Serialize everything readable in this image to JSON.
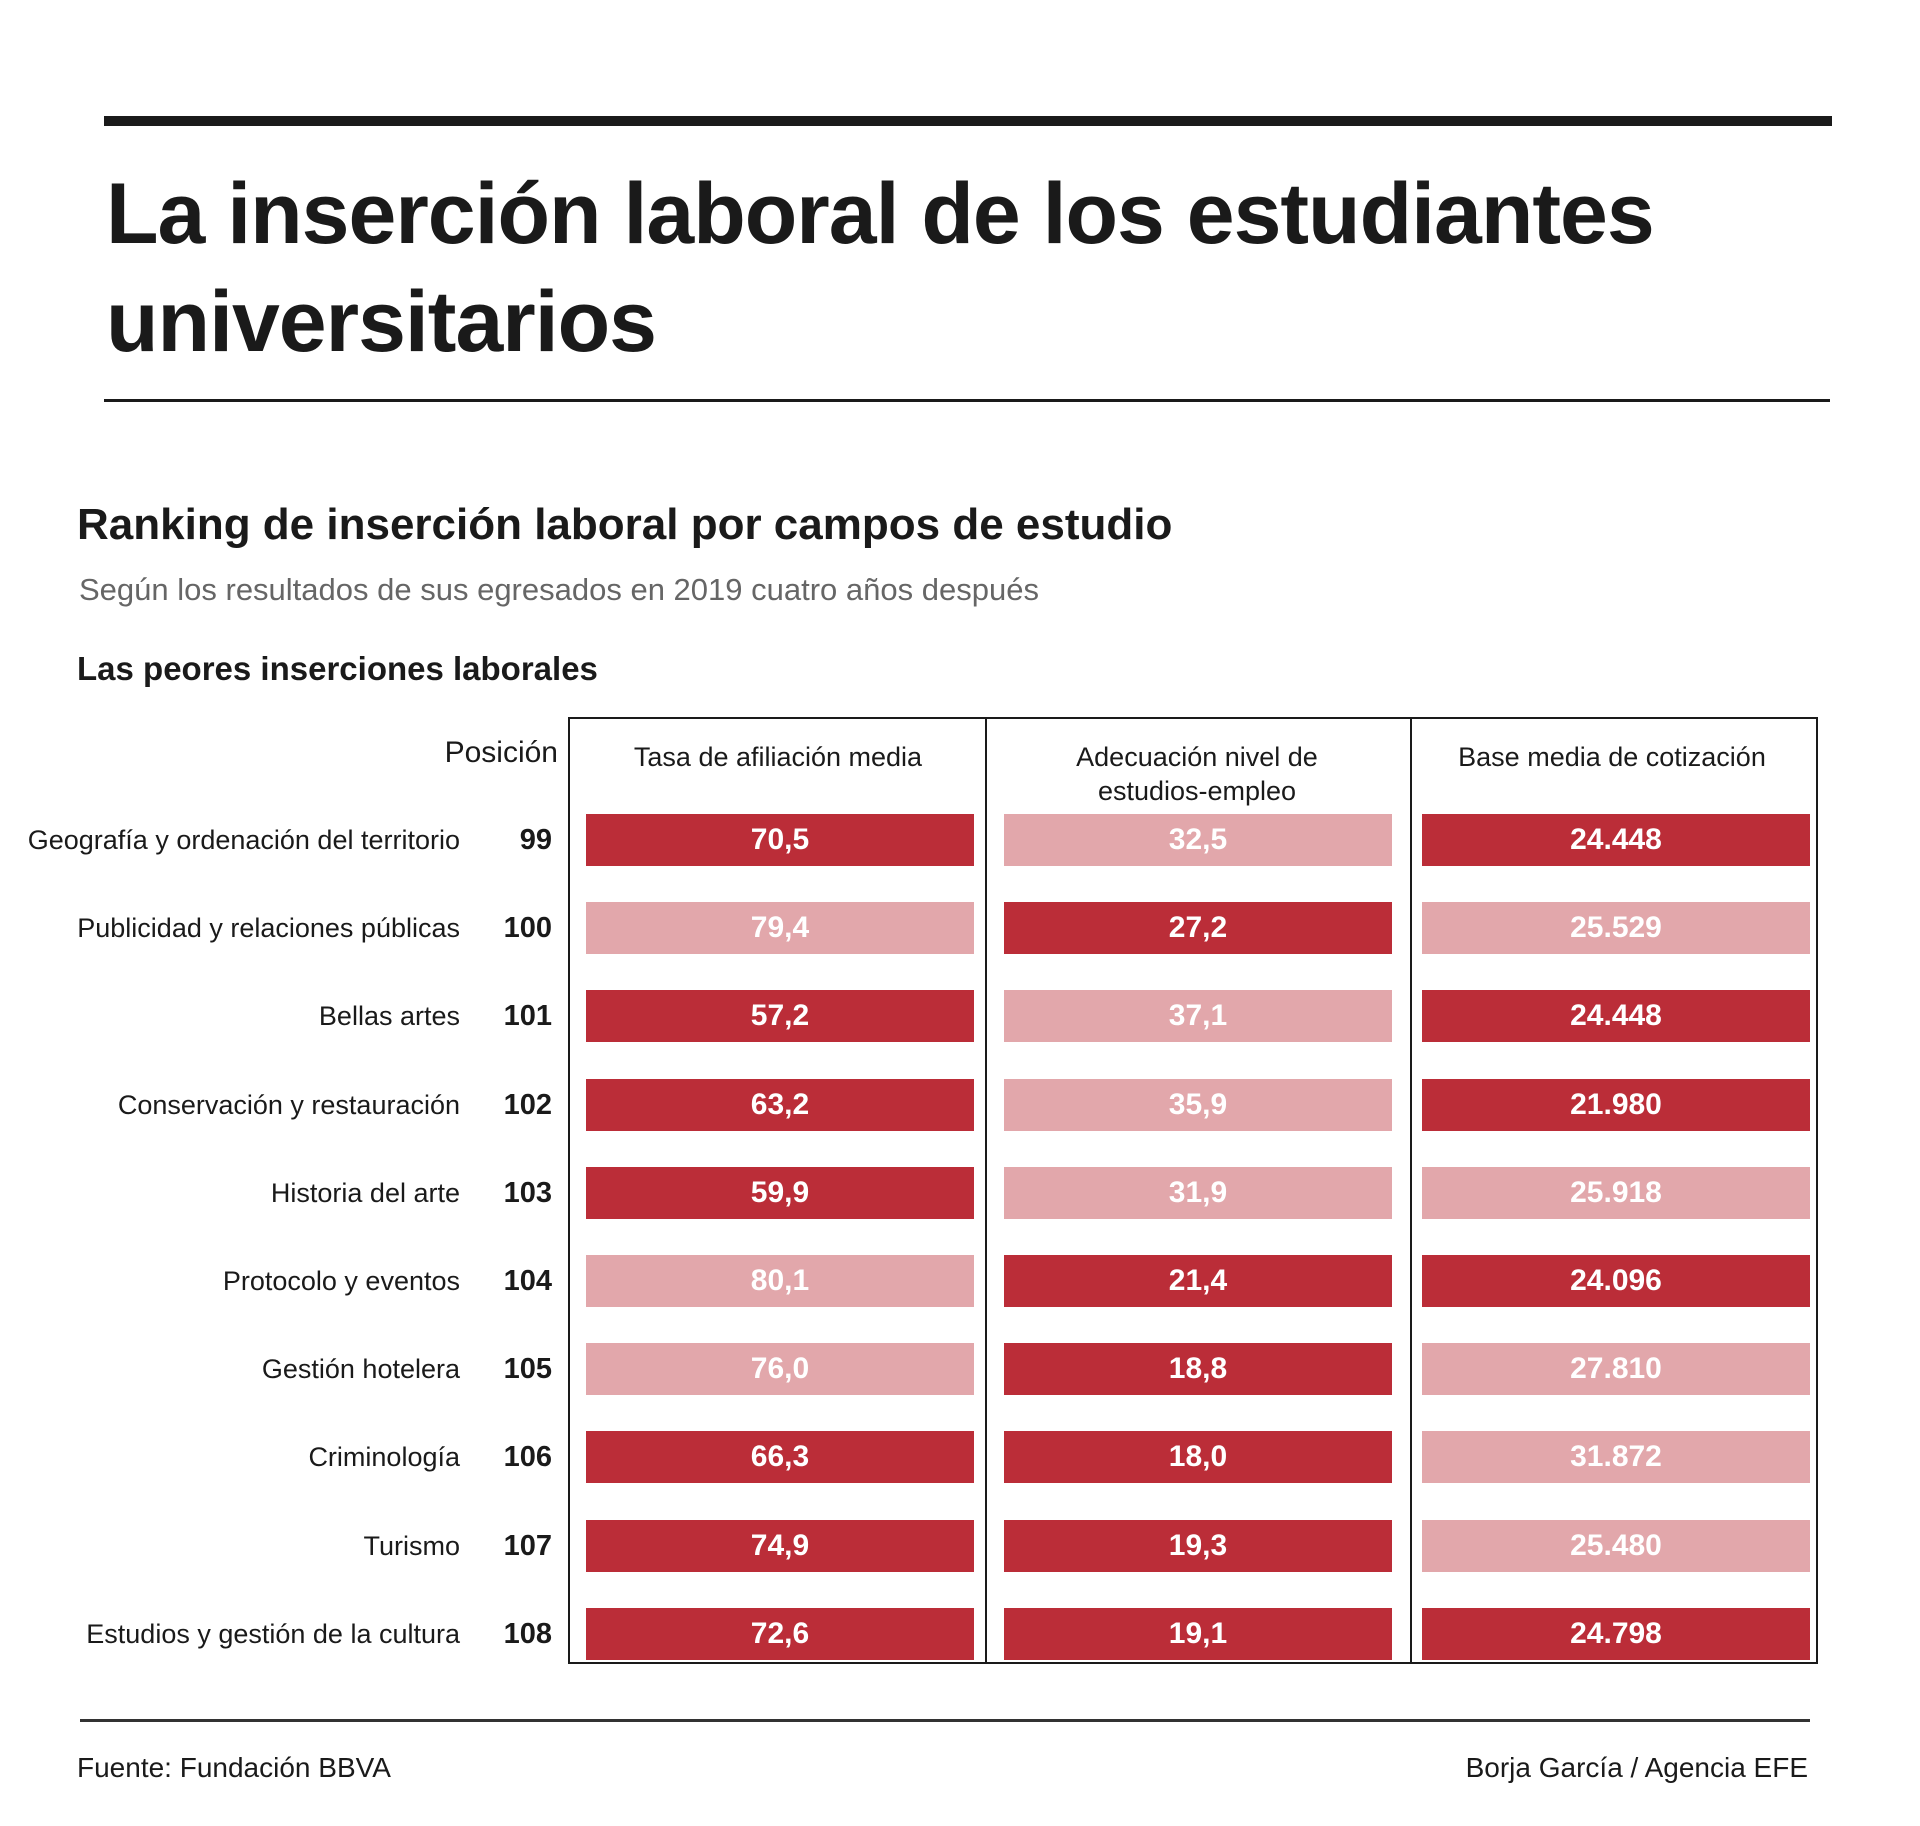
{
  "header": {
    "title_line1": "La inserción laboral de los estudiantes",
    "title_line2": "universitarios"
  },
  "chart_data": {
    "type": "table",
    "title": "Ranking de inserción laboral por campos de estudio",
    "subtitle": "Según los resultados de sus egresados en 2019 cuatro años después",
    "section": "Las peores inserciones laborales",
    "position_header": "Posición",
    "columns": [
      {
        "name": "Tasa de afiliación media",
        "lines": [
          "Tasa de afiliación media"
        ]
      },
      {
        "name": "Adecuación nivel de estudios-empleo",
        "lines": [
          "Adecuación nivel de",
          "estudios-empleo"
        ]
      },
      {
        "name": "Base media de cotización",
        "lines": [
          "Base media de cotización"
        ]
      }
    ],
    "rows": [
      {
        "label": "Geografía y ordenación del territorio",
        "position": "99",
        "values": [
          "70,5",
          "32,5",
          "24.448"
        ],
        "highlight": [
          true,
          false,
          true
        ]
      },
      {
        "label": "Publicidad y relaciones públicas",
        "position": "100",
        "values": [
          "79,4",
          "27,2",
          "25.529"
        ],
        "highlight": [
          false,
          true,
          false
        ]
      },
      {
        "label": "Bellas artes",
        "position": "101",
        "values": [
          "57,2",
          "37,1",
          "24.448"
        ],
        "highlight": [
          true,
          false,
          true
        ]
      },
      {
        "label": "Conservación y restauración",
        "position": "102",
        "values": [
          "63,2",
          "35,9",
          "21.980"
        ],
        "highlight": [
          true,
          false,
          true
        ]
      },
      {
        "label": "Historia del arte",
        "position": "103",
        "values": [
          "59,9",
          "31,9",
          "25.918"
        ],
        "highlight": [
          true,
          false,
          false
        ]
      },
      {
        "label": "Protocolo y eventos",
        "position": "104",
        "values": [
          "80,1",
          "21,4",
          "24.096"
        ],
        "highlight": [
          false,
          true,
          true
        ]
      },
      {
        "label": "Gestión hotelera",
        "position": "105",
        "values": [
          "76,0",
          "18,8",
          "27.810"
        ],
        "highlight": [
          false,
          true,
          false
        ]
      },
      {
        "label": "Criminología",
        "position": "106",
        "values": [
          "66,3",
          "18,0",
          "31.872"
        ],
        "highlight": [
          true,
          true,
          false
        ]
      },
      {
        "label": "Turismo",
        "position": "107",
        "values": [
          "74,9",
          "19,3",
          "25.480"
        ],
        "highlight": [
          true,
          true,
          false
        ]
      },
      {
        "label": "Estudios y gestión de la cultura",
        "position": "108",
        "values": [
          "72,6",
          "19,1",
          "24.798"
        ],
        "highlight": [
          true,
          true,
          true
        ]
      }
    ]
  },
  "colors": {
    "highlight": "#bb2d38",
    "muted": "#e2a7ab"
  },
  "footer": {
    "source": "Fuente: Fundación BBVA",
    "credit": "Borja García / Agencia EFE"
  }
}
